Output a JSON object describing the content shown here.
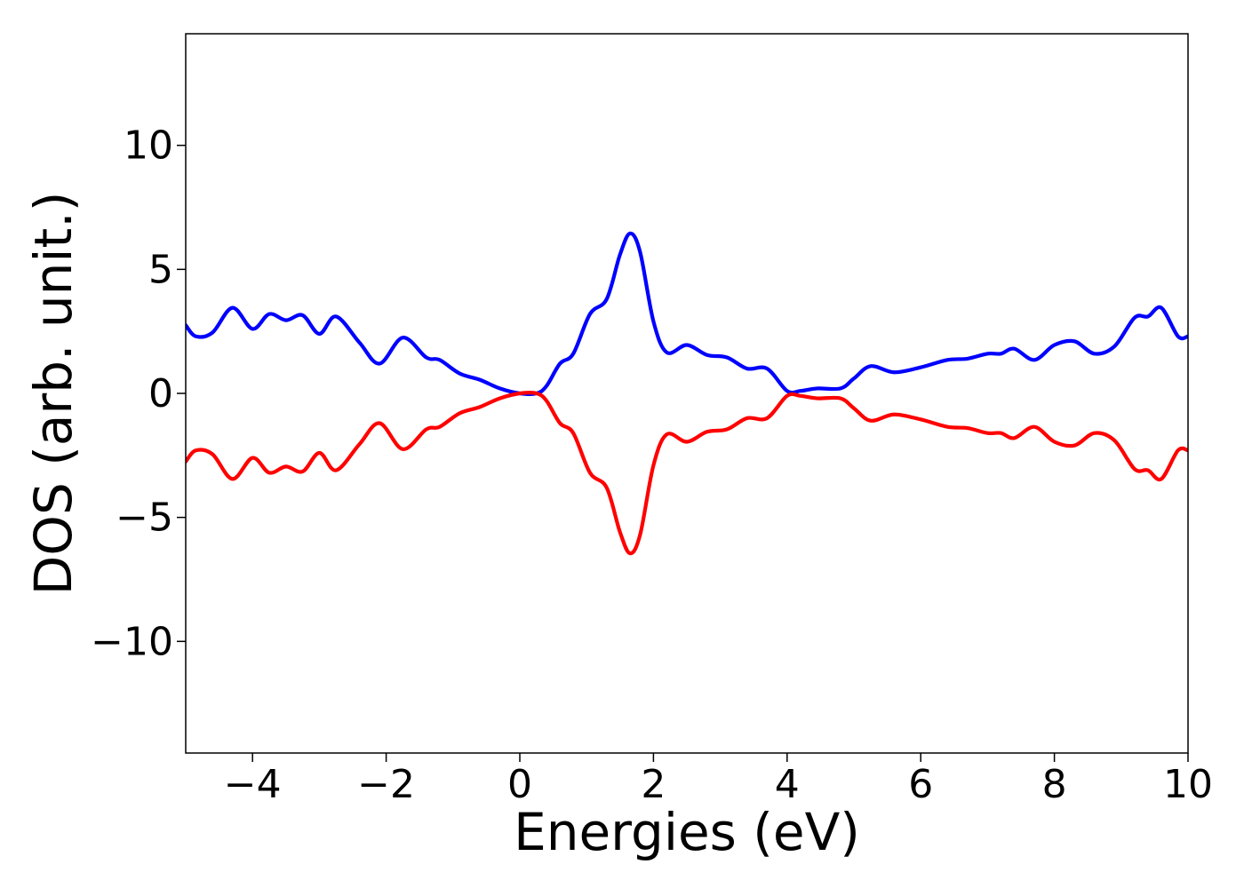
{
  "chart_data": {
    "type": "line",
    "xlabel": "Energies (eV)",
    "ylabel": "DOS (arb. unit.)",
    "xlim": [
      -5,
      10
    ],
    "ylim": [
      -14.5,
      14.5
    ],
    "grid": false,
    "legend": "none",
    "xticks": [
      {
        "value": -4,
        "label": "−4"
      },
      {
        "value": -2,
        "label": "−2"
      },
      {
        "value": 0,
        "label": "0"
      },
      {
        "value": 2,
        "label": "2"
      },
      {
        "value": 4,
        "label": "4"
      },
      {
        "value": 6,
        "label": "6"
      },
      {
        "value": 8,
        "label": "8"
      },
      {
        "value": 10,
        "label": "10"
      }
    ],
    "yticks": [
      {
        "value": -10,
        "label": "−10"
      },
      {
        "value": -5,
        "label": "−5"
      },
      {
        "value": 0,
        "label": "0"
      },
      {
        "value": 5,
        "label": "5"
      },
      {
        "value": 10,
        "label": "10"
      }
    ],
    "series": [
      {
        "color": "#0000ff",
        "points": [
          [
            -5.0,
            2.75
          ],
          [
            -4.85,
            2.3
          ],
          [
            -4.6,
            2.45
          ],
          [
            -4.3,
            3.45
          ],
          [
            -4.0,
            2.6
          ],
          [
            -3.75,
            3.2
          ],
          [
            -3.5,
            2.95
          ],
          [
            -3.25,
            3.15
          ],
          [
            -3.0,
            2.4
          ],
          [
            -2.75,
            3.1
          ],
          [
            -2.4,
            2.05
          ],
          [
            -2.1,
            1.2
          ],
          [
            -1.75,
            2.25
          ],
          [
            -1.4,
            1.45
          ],
          [
            -1.2,
            1.35
          ],
          [
            -0.9,
            0.8
          ],
          [
            -0.6,
            0.55
          ],
          [
            -0.3,
            0.2
          ],
          [
            0.0,
            0.0
          ],
          [
            0.25,
            0.0
          ],
          [
            0.4,
            0.3
          ],
          [
            0.6,
            1.2
          ],
          [
            0.8,
            1.6
          ],
          [
            1.05,
            3.2
          ],
          [
            1.3,
            3.8
          ],
          [
            1.5,
            5.6
          ],
          [
            1.65,
            6.45
          ],
          [
            1.8,
            5.7
          ],
          [
            2.0,
            2.9
          ],
          [
            2.2,
            1.65
          ],
          [
            2.5,
            1.95
          ],
          [
            2.8,
            1.55
          ],
          [
            3.1,
            1.45
          ],
          [
            3.4,
            1.0
          ],
          [
            3.7,
            1.0
          ],
          [
            4.0,
            0.1
          ],
          [
            4.2,
            0.1
          ],
          [
            4.45,
            0.2
          ],
          [
            4.8,
            0.2
          ],
          [
            5.0,
            0.6
          ],
          [
            5.25,
            1.1
          ],
          [
            5.6,
            0.85
          ],
          [
            6.0,
            1.05
          ],
          [
            6.4,
            1.35
          ],
          [
            6.7,
            1.4
          ],
          [
            7.0,
            1.6
          ],
          [
            7.2,
            1.6
          ],
          [
            7.4,
            1.8
          ],
          [
            7.7,
            1.35
          ],
          [
            8.0,
            1.95
          ],
          [
            8.3,
            2.1
          ],
          [
            8.6,
            1.6
          ],
          [
            8.9,
            1.9
          ],
          [
            9.2,
            3.05
          ],
          [
            9.4,
            3.1
          ],
          [
            9.6,
            3.45
          ],
          [
            9.85,
            2.3
          ],
          [
            10.0,
            2.3
          ]
        ]
      },
      {
        "color": "#ff0000",
        "points": [
          [
            -5.0,
            -2.75
          ],
          [
            -4.85,
            -2.3
          ],
          [
            -4.6,
            -2.45
          ],
          [
            -4.3,
            -3.45
          ],
          [
            -4.0,
            -2.6
          ],
          [
            -3.75,
            -3.2
          ],
          [
            -3.5,
            -2.95
          ],
          [
            -3.25,
            -3.15
          ],
          [
            -3.0,
            -2.4
          ],
          [
            -2.75,
            -3.1
          ],
          [
            -2.4,
            -2.05
          ],
          [
            -2.1,
            -1.2
          ],
          [
            -1.75,
            -2.25
          ],
          [
            -1.4,
            -1.45
          ],
          [
            -1.2,
            -1.35
          ],
          [
            -0.9,
            -0.8
          ],
          [
            -0.6,
            -0.55
          ],
          [
            -0.3,
            -0.2
          ],
          [
            0.0,
            0.0
          ],
          [
            0.25,
            0.0
          ],
          [
            0.4,
            -0.3
          ],
          [
            0.6,
            -1.2
          ],
          [
            0.8,
            -1.6
          ],
          [
            1.05,
            -3.2
          ],
          [
            1.3,
            -3.8
          ],
          [
            1.5,
            -5.6
          ],
          [
            1.65,
            -6.45
          ],
          [
            1.8,
            -5.7
          ],
          [
            2.0,
            -2.9
          ],
          [
            2.2,
            -1.65
          ],
          [
            2.5,
            -1.95
          ],
          [
            2.8,
            -1.55
          ],
          [
            3.1,
            -1.45
          ],
          [
            3.4,
            -1.0
          ],
          [
            3.7,
            -1.0
          ],
          [
            4.0,
            -0.1
          ],
          [
            4.2,
            -0.1
          ],
          [
            4.45,
            -0.2
          ],
          [
            4.8,
            -0.2
          ],
          [
            5.0,
            -0.6
          ],
          [
            5.25,
            -1.1
          ],
          [
            5.6,
            -0.85
          ],
          [
            6.0,
            -1.05
          ],
          [
            6.4,
            -1.35
          ],
          [
            6.7,
            -1.4
          ],
          [
            7.0,
            -1.6
          ],
          [
            7.2,
            -1.6
          ],
          [
            7.4,
            -1.8
          ],
          [
            7.7,
            -1.35
          ],
          [
            8.0,
            -1.95
          ],
          [
            8.3,
            -2.1
          ],
          [
            8.6,
            -1.6
          ],
          [
            8.9,
            -1.9
          ],
          [
            9.2,
            -3.05
          ],
          [
            9.4,
            -3.1
          ],
          [
            9.6,
            -3.45
          ],
          [
            9.85,
            -2.3
          ],
          [
            10.0,
            -2.3
          ]
        ]
      }
    ]
  }
}
